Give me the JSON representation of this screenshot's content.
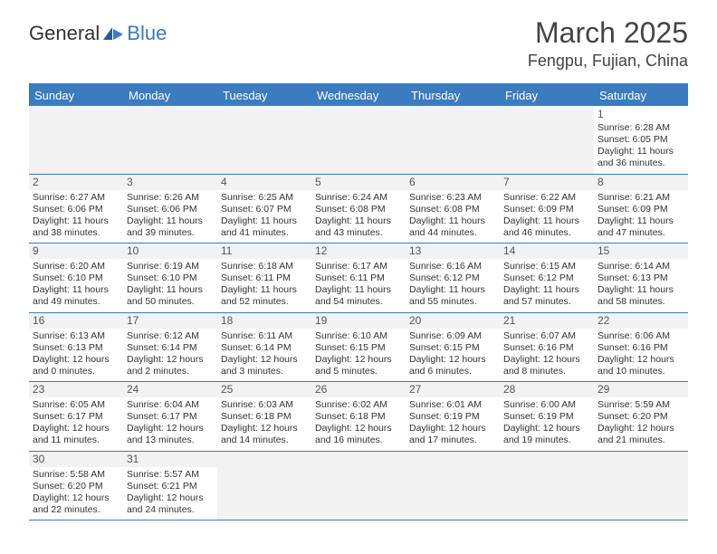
{
  "logo": {
    "text1": "General",
    "text2": "Blue"
  },
  "title": "March 2025",
  "location": "Fengpu, Fujian, China",
  "colors": {
    "accent": "#3b7bbf",
    "header_text": "#ffffff",
    "body_text": "#333333",
    "alt_row_bg": "#f2f2f2",
    "background": "#ffffff"
  },
  "typography": {
    "title_fontsize": 32,
    "location_fontsize": 18,
    "dow_fontsize": 13,
    "cell_fontsize": 10.5,
    "daynum_fontsize": 12
  },
  "days_of_week": [
    "Sunday",
    "Monday",
    "Tuesday",
    "Wednesday",
    "Thursday",
    "Friday",
    "Saturday"
  ],
  "weeks": [
    [
      null,
      null,
      null,
      null,
      null,
      null,
      {
        "n": "1",
        "sunrise": "Sunrise: 6:28 AM",
        "sunset": "Sunset: 6:05 PM",
        "daylight": "Daylight: 11 hours and 36 minutes."
      }
    ],
    [
      {
        "n": "2",
        "sunrise": "Sunrise: 6:27 AM",
        "sunset": "Sunset: 6:06 PM",
        "daylight": "Daylight: 11 hours and 38 minutes."
      },
      {
        "n": "3",
        "sunrise": "Sunrise: 6:26 AM",
        "sunset": "Sunset: 6:06 PM",
        "daylight": "Daylight: 11 hours and 39 minutes."
      },
      {
        "n": "4",
        "sunrise": "Sunrise: 6:25 AM",
        "sunset": "Sunset: 6:07 PM",
        "daylight": "Daylight: 11 hours and 41 minutes."
      },
      {
        "n": "5",
        "sunrise": "Sunrise: 6:24 AM",
        "sunset": "Sunset: 6:08 PM",
        "daylight": "Daylight: 11 hours and 43 minutes."
      },
      {
        "n": "6",
        "sunrise": "Sunrise: 6:23 AM",
        "sunset": "Sunset: 6:08 PM",
        "daylight": "Daylight: 11 hours and 44 minutes."
      },
      {
        "n": "7",
        "sunrise": "Sunrise: 6:22 AM",
        "sunset": "Sunset: 6:09 PM",
        "daylight": "Daylight: 11 hours and 46 minutes."
      },
      {
        "n": "8",
        "sunrise": "Sunrise: 6:21 AM",
        "sunset": "Sunset: 6:09 PM",
        "daylight": "Daylight: 11 hours and 47 minutes."
      }
    ],
    [
      {
        "n": "9",
        "sunrise": "Sunrise: 6:20 AM",
        "sunset": "Sunset: 6:10 PM",
        "daylight": "Daylight: 11 hours and 49 minutes."
      },
      {
        "n": "10",
        "sunrise": "Sunrise: 6:19 AM",
        "sunset": "Sunset: 6:10 PM",
        "daylight": "Daylight: 11 hours and 50 minutes."
      },
      {
        "n": "11",
        "sunrise": "Sunrise: 6:18 AM",
        "sunset": "Sunset: 6:11 PM",
        "daylight": "Daylight: 11 hours and 52 minutes."
      },
      {
        "n": "12",
        "sunrise": "Sunrise: 6:17 AM",
        "sunset": "Sunset: 6:11 PM",
        "daylight": "Daylight: 11 hours and 54 minutes."
      },
      {
        "n": "13",
        "sunrise": "Sunrise: 6:16 AM",
        "sunset": "Sunset: 6:12 PM",
        "daylight": "Daylight: 11 hours and 55 minutes."
      },
      {
        "n": "14",
        "sunrise": "Sunrise: 6:15 AM",
        "sunset": "Sunset: 6:12 PM",
        "daylight": "Daylight: 11 hours and 57 minutes."
      },
      {
        "n": "15",
        "sunrise": "Sunrise: 6:14 AM",
        "sunset": "Sunset: 6:13 PM",
        "daylight": "Daylight: 11 hours and 58 minutes."
      }
    ],
    [
      {
        "n": "16",
        "sunrise": "Sunrise: 6:13 AM",
        "sunset": "Sunset: 6:13 PM",
        "daylight": "Daylight: 12 hours and 0 minutes."
      },
      {
        "n": "17",
        "sunrise": "Sunrise: 6:12 AM",
        "sunset": "Sunset: 6:14 PM",
        "daylight": "Daylight: 12 hours and 2 minutes."
      },
      {
        "n": "18",
        "sunrise": "Sunrise: 6:11 AM",
        "sunset": "Sunset: 6:14 PM",
        "daylight": "Daylight: 12 hours and 3 minutes."
      },
      {
        "n": "19",
        "sunrise": "Sunrise: 6:10 AM",
        "sunset": "Sunset: 6:15 PM",
        "daylight": "Daylight: 12 hours and 5 minutes."
      },
      {
        "n": "20",
        "sunrise": "Sunrise: 6:09 AM",
        "sunset": "Sunset: 6:15 PM",
        "daylight": "Daylight: 12 hours and 6 minutes."
      },
      {
        "n": "21",
        "sunrise": "Sunrise: 6:07 AM",
        "sunset": "Sunset: 6:16 PM",
        "daylight": "Daylight: 12 hours and 8 minutes."
      },
      {
        "n": "22",
        "sunrise": "Sunrise: 6:06 AM",
        "sunset": "Sunset: 6:16 PM",
        "daylight": "Daylight: 12 hours and 10 minutes."
      }
    ],
    [
      {
        "n": "23",
        "sunrise": "Sunrise: 6:05 AM",
        "sunset": "Sunset: 6:17 PM",
        "daylight": "Daylight: 12 hours and 11 minutes."
      },
      {
        "n": "24",
        "sunrise": "Sunrise: 6:04 AM",
        "sunset": "Sunset: 6:17 PM",
        "daylight": "Daylight: 12 hours and 13 minutes."
      },
      {
        "n": "25",
        "sunrise": "Sunrise: 6:03 AM",
        "sunset": "Sunset: 6:18 PM",
        "daylight": "Daylight: 12 hours and 14 minutes."
      },
      {
        "n": "26",
        "sunrise": "Sunrise: 6:02 AM",
        "sunset": "Sunset: 6:18 PM",
        "daylight": "Daylight: 12 hours and 16 minutes."
      },
      {
        "n": "27",
        "sunrise": "Sunrise: 6:01 AM",
        "sunset": "Sunset: 6:19 PM",
        "daylight": "Daylight: 12 hours and 17 minutes."
      },
      {
        "n": "28",
        "sunrise": "Sunrise: 6:00 AM",
        "sunset": "Sunset: 6:19 PM",
        "daylight": "Daylight: 12 hours and 19 minutes."
      },
      {
        "n": "29",
        "sunrise": "Sunrise: 5:59 AM",
        "sunset": "Sunset: 6:20 PM",
        "daylight": "Daylight: 12 hours and 21 minutes."
      }
    ],
    [
      {
        "n": "30",
        "sunrise": "Sunrise: 5:58 AM",
        "sunset": "Sunset: 6:20 PM",
        "daylight": "Daylight: 12 hours and 22 minutes."
      },
      {
        "n": "31",
        "sunrise": "Sunrise: 5:57 AM",
        "sunset": "Sunset: 6:21 PM",
        "daylight": "Daylight: 12 hours and 24 minutes."
      },
      null,
      null,
      null,
      null,
      null
    ]
  ]
}
